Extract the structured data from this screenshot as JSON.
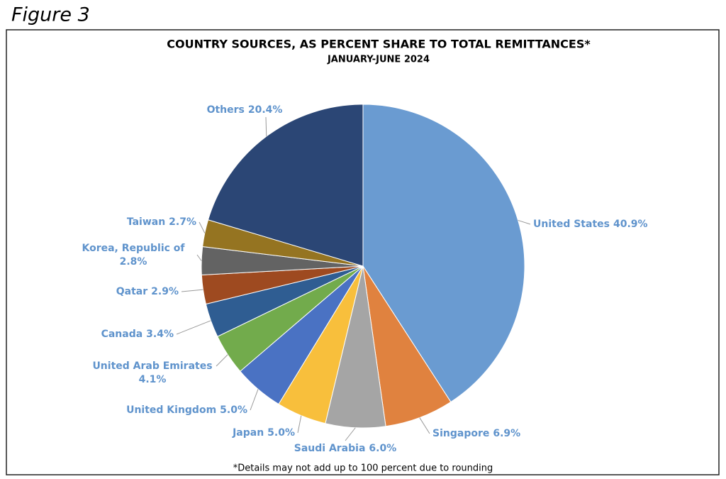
{
  "figure_label": "Figure 3",
  "chart_data": {
    "type": "pie",
    "title": "COUNTRY SOURCES, AS PERCENT SHARE TO TOTAL REMITTANCES*",
    "subtitle": "JANUARY-JUNE 2024",
    "footnote": "*Details may not add up to 100 percent due to rounding",
    "categories": [
      "United States",
      "Singapore",
      "Saudi Arabia",
      "Japan",
      "United Kingdom",
      "United Arab Emirates",
      "Canada",
      "Qatar",
      "Korea, Republic of",
      "Taiwan",
      "Others"
    ],
    "values": [
      40.9,
      6.9,
      6.0,
      5.0,
      5.0,
      4.1,
      3.4,
      2.9,
      2.8,
      2.7,
      20.4
    ],
    "value_labels": [
      "40.9%",
      "6.9%",
      "6.0%",
      "5.0%",
      "5.0%",
      "4.1%",
      "3.4%",
      "2.9%",
      "2.8%",
      "2.7%",
      "20.4%"
    ],
    "colors": [
      "#6a9bd1",
      "#e0823f",
      "#a5a5a5",
      "#f8bf3c",
      "#4a72c3",
      "#72ab4c",
      "#2f5d92",
      "#9e4a20",
      "#636363",
      "#957421",
      "#2b4675"
    ]
  }
}
